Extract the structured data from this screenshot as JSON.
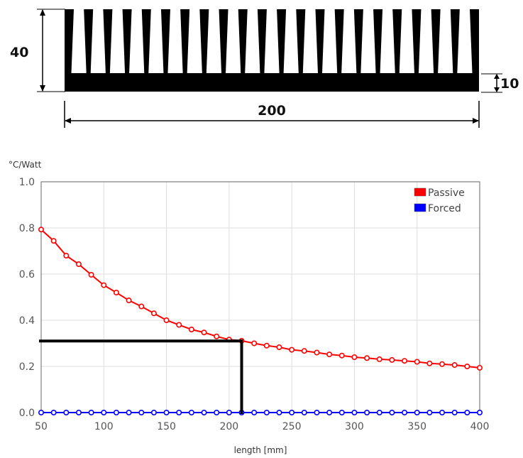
{
  "drawing": {
    "height_label": "40",
    "base_thickness_label": "10",
    "width_label": "200"
  },
  "chart_data": {
    "type": "line",
    "ylabel": "°C/Watt",
    "xlabel": "length [mm]",
    "xlim": [
      50,
      400
    ],
    "ylim": [
      0.0,
      1.0
    ],
    "x_ticks": [
      "50",
      "100",
      "150",
      "200",
      "250",
      "300",
      "350",
      "400"
    ],
    "y_ticks": [
      "0.0",
      "0.2",
      "0.4",
      "0.6",
      "0.8",
      "1.0"
    ],
    "grid": true,
    "legend_position": "top-right",
    "series": [
      {
        "name": "Passive",
        "color": "#ff0000",
        "x": [
          50,
          60,
          70,
          80,
          90,
          100,
          110,
          120,
          130,
          140,
          150,
          160,
          170,
          180,
          190,
          200,
          210,
          220,
          230,
          240,
          250,
          260,
          270,
          280,
          290,
          300,
          310,
          320,
          330,
          340,
          350,
          360,
          370,
          380,
          390,
          400
        ],
        "y": [
          0.793,
          0.744,
          0.68,
          0.643,
          0.597,
          0.552,
          0.52,
          0.486,
          0.46,
          0.43,
          0.4,
          0.38,
          0.36,
          0.347,
          0.33,
          0.316,
          0.311,
          0.3,
          0.29,
          0.283,
          0.272,
          0.267,
          0.26,
          0.252,
          0.247,
          0.24,
          0.236,
          0.231,
          0.228,
          0.224,
          0.22,
          0.213,
          0.21,
          0.206,
          0.2,
          0.194
        ]
      },
      {
        "name": "Forced",
        "color": "#0000ff",
        "x": [
          50,
          60,
          70,
          80,
          90,
          100,
          110,
          120,
          130,
          140,
          150,
          160,
          170,
          180,
          190,
          200,
          210,
          220,
          230,
          240,
          250,
          260,
          270,
          280,
          290,
          300,
          310,
          320,
          330,
          340,
          350,
          360,
          370,
          380,
          390,
          400
        ],
        "y": [
          0,
          0,
          0,
          0,
          0,
          0,
          0,
          0,
          0,
          0,
          0,
          0,
          0,
          0,
          0,
          0,
          0,
          0,
          0,
          0,
          0,
          0,
          0,
          0,
          0,
          0,
          0,
          0,
          0,
          0,
          0,
          0,
          0,
          0,
          0,
          0
        ]
      }
    ],
    "annotation": {
      "x": 210,
      "y": 0.31,
      "color": "#000000"
    }
  }
}
